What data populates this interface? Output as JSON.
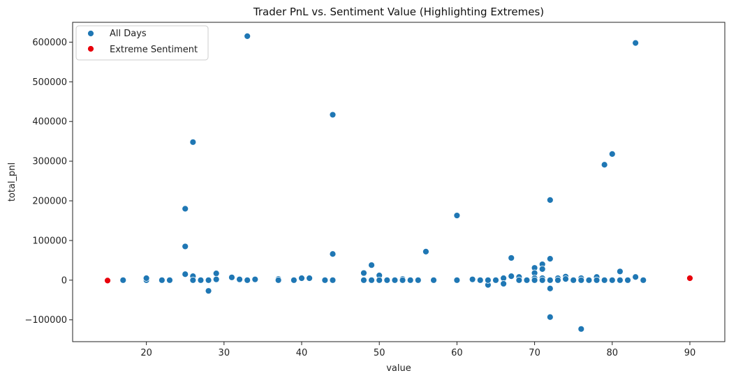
{
  "chart_data": {
    "type": "scatter",
    "title": "Trader PnL vs. Sentiment Value (Highlighting Extremes)",
    "xlabel": "value",
    "ylabel": "total_pnl",
    "xlim": [
      10.5,
      94.5
    ],
    "ylim": [
      -155000,
      650000
    ],
    "x_ticks": [
      20,
      30,
      40,
      50,
      60,
      70,
      80,
      90
    ],
    "y_ticks": [
      -100000,
      0,
      100000,
      200000,
      300000,
      400000,
      500000,
      600000
    ],
    "grid": false,
    "legend_position": "top-left",
    "colors": {
      "All Days": "#1f77b4",
      "Extreme Sentiment": "#e8000b"
    },
    "series": [
      {
        "name": "All Days",
        "points": [
          [
            17,
            0
          ],
          [
            20,
            0
          ],
          [
            20,
            5000
          ],
          [
            22,
            0
          ],
          [
            23,
            0
          ],
          [
            25,
            180000
          ],
          [
            25,
            85000
          ],
          [
            25,
            15000
          ],
          [
            26,
            348000
          ],
          [
            26,
            10000
          ],
          [
            26,
            0
          ],
          [
            27,
            0
          ],
          [
            28,
            -27000
          ],
          [
            28,
            0
          ],
          [
            29,
            17000
          ],
          [
            29,
            2000
          ],
          [
            31,
            7000
          ],
          [
            32,
            2000
          ],
          [
            33,
            615000
          ],
          [
            33,
            0
          ],
          [
            34,
            2000
          ],
          [
            37,
            3000
          ],
          [
            37,
            0
          ],
          [
            39,
            0
          ],
          [
            40,
            5000
          ],
          [
            41,
            5000
          ],
          [
            43,
            0
          ],
          [
            44,
            417000
          ],
          [
            44,
            66000
          ],
          [
            44,
            0
          ],
          [
            48,
            18000
          ],
          [
            48,
            0
          ],
          [
            49,
            38000
          ],
          [
            49,
            0
          ],
          [
            50,
            12000
          ],
          [
            50,
            0
          ],
          [
            51,
            0
          ],
          [
            52,
            0
          ],
          [
            53,
            3000
          ],
          [
            53,
            0
          ],
          [
            54,
            0
          ],
          [
            55,
            0
          ],
          [
            56,
            72000
          ],
          [
            57,
            0
          ],
          [
            60,
            163000
          ],
          [
            60,
            0
          ],
          [
            62,
            2000
          ],
          [
            63,
            0
          ],
          [
            64,
            -12000
          ],
          [
            64,
            0
          ],
          [
            65,
            0
          ],
          [
            66,
            5000
          ],
          [
            66,
            -9000
          ],
          [
            67,
            56000
          ],
          [
            67,
            10000
          ],
          [
            68,
            8000
          ],
          [
            68,
            0
          ],
          [
            69,
            0
          ],
          [
            70,
            31000
          ],
          [
            70,
            18000
          ],
          [
            70,
            5000
          ],
          [
            70,
            0
          ],
          [
            71,
            40000
          ],
          [
            71,
            28000
          ],
          [
            71,
            5000
          ],
          [
            71,
            0
          ],
          [
            72,
            202000
          ],
          [
            72,
            54000
          ],
          [
            72,
            0
          ],
          [
            72,
            -21000
          ],
          [
            72,
            -93000
          ],
          [
            73,
            5000
          ],
          [
            73,
            0
          ],
          [
            74,
            9000
          ],
          [
            74,
            3000
          ],
          [
            75,
            0
          ],
          [
            76,
            5000
          ],
          [
            76,
            0
          ],
          [
            76,
            -123000
          ],
          [
            77,
            0
          ],
          [
            78,
            8000
          ],
          [
            78,
            0
          ],
          [
            79,
            291000
          ],
          [
            79,
            0
          ],
          [
            80,
            318000
          ],
          [
            80,
            0
          ],
          [
            81,
            22000
          ],
          [
            81,
            0
          ],
          [
            82,
            0
          ],
          [
            83,
            598000
          ],
          [
            83,
            8000
          ],
          [
            84,
            0
          ]
        ]
      },
      {
        "name": "Extreme Sentiment",
        "points": [
          [
            15,
            -1000
          ],
          [
            90,
            5000
          ]
        ]
      }
    ]
  }
}
